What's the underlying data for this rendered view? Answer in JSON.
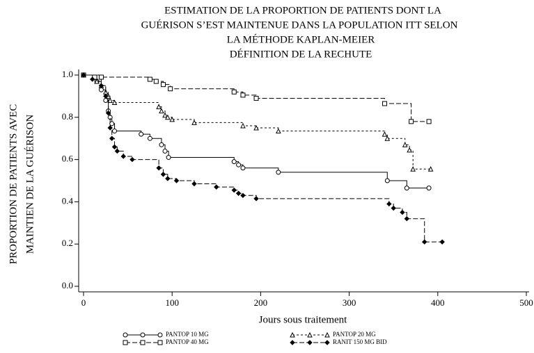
{
  "chart_data": {
    "type": "line",
    "step": true,
    "title": [
      "ESTIMATION DE LA PROPORTION DE PATIENTS DONT LA",
      "GUÉRISON S’EST MAINTENUE DANS LA POPULATION ITT SELON",
      "LA MÉTHODE KAPLAN-MEIER",
      "DÉFINITION DE LA RECHUTE"
    ],
    "ylabel": [
      "PROPORTION DE PATIENTS AVEC",
      "MAINTIEN DE LA GUÉRISON"
    ],
    "xlabel": "Jours sous traitement",
    "xlim": [
      0,
      500
    ],
    "xticks": [
      0,
      100,
      200,
      300,
      400,
      500
    ],
    "ylim": [
      0,
      1
    ],
    "yticks": [
      {
        "value": 0,
        "label": "0.0"
      },
      0.2,
      0.4,
      0.6,
      0.8,
      {
        "value": 1,
        "label": "1.0"
      }
    ],
    "series": [
      {
        "name": "PANTOP 10 MG",
        "color": "#000000",
        "marker": "circle",
        "dash": "solid",
        "x": [
          0,
          15,
          20,
          25,
          28,
          30,
          32,
          35,
          65,
          75,
          88,
          92,
          96,
          170,
          175,
          180,
          220,
          343,
          365,
          390
        ],
        "values": [
          1.0,
          0.97,
          0.93,
          0.88,
          0.83,
          0.8,
          0.77,
          0.735,
          0.72,
          0.7,
          0.67,
          0.64,
          0.61,
          0.59,
          0.575,
          0.56,
          0.54,
          0.5,
          0.465,
          0.465
        ]
      },
      {
        "name": "PANTOP 40 MG",
        "color": "#000000",
        "marker": "square",
        "dash": "long",
        "x": [
          0,
          20,
          75,
          82,
          90,
          98,
          170,
          180,
          195,
          340,
          370,
          390
        ],
        "values": [
          1.0,
          0.99,
          0.98,
          0.97,
          0.955,
          0.935,
          0.92,
          0.905,
          0.89,
          0.865,
          0.78,
          0.78
        ]
      },
      {
        "name": "PANTOP 20 MG",
        "color": "#000000",
        "marker": "triangle",
        "dash": "short",
        "x": [
          0,
          15,
          20,
          25,
          28,
          30,
          35,
          85,
          88,
          92,
          95,
          100,
          125,
          180,
          195,
          220,
          340,
          343,
          363,
          368,
          372,
          392
        ],
        "values": [
          1.0,
          0.97,
          0.95,
          0.92,
          0.9,
          0.88,
          0.87,
          0.85,
          0.83,
          0.81,
          0.8,
          0.79,
          0.775,
          0.76,
          0.75,
          0.735,
          0.72,
          0.7,
          0.67,
          0.645,
          0.555,
          0.555
        ]
      },
      {
        "name": "RANIT 150 MG BID",
        "color": "#000000",
        "marker": "diamond",
        "dash": "long",
        "x": [
          0,
          10,
          20,
          25,
          28,
          30,
          32,
          35,
          38,
          45,
          55,
          85,
          90,
          95,
          105,
          125,
          150,
          170,
          175,
          180,
          195,
          345,
          350,
          360,
          365,
          385,
          405
        ],
        "values": [
          1.0,
          0.98,
          0.95,
          0.9,
          0.82,
          0.75,
          0.7,
          0.66,
          0.64,
          0.615,
          0.6,
          0.56,
          0.53,
          0.51,
          0.5,
          0.485,
          0.47,
          0.455,
          0.44,
          0.43,
          0.415,
          0.39,
          0.37,
          0.35,
          0.32,
          0.21,
          0.21
        ]
      }
    ]
  }
}
